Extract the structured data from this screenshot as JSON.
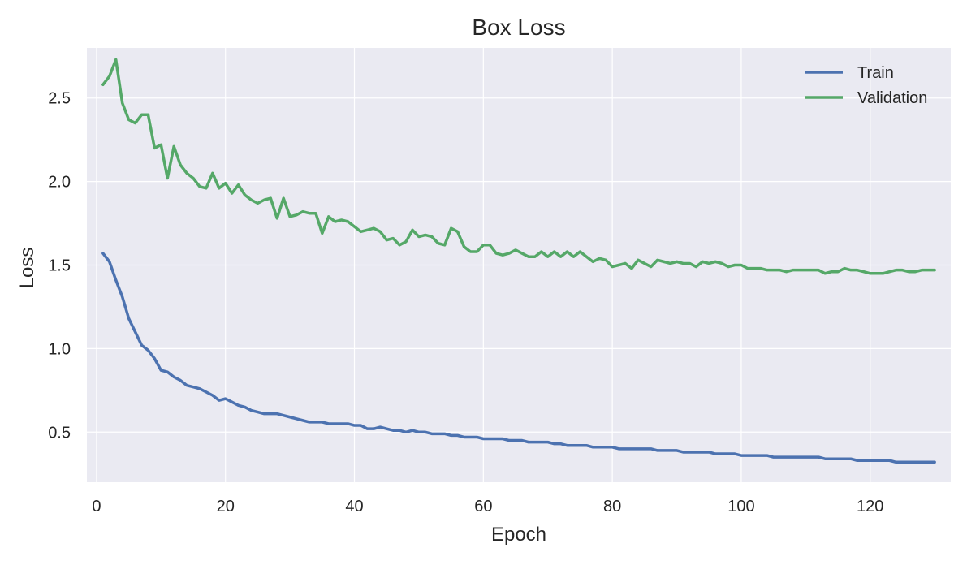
{
  "chart_data": {
    "type": "line",
    "title": "Box Loss",
    "xlabel": "Epoch",
    "ylabel": "Loss",
    "xlim": [
      -1.5,
      132.5
    ],
    "ylim": [
      0.2,
      2.8
    ],
    "xticks": [
      0,
      20,
      40,
      60,
      80,
      100,
      120
    ],
    "yticks": [
      0.5,
      1.0,
      1.5,
      2.0,
      2.5
    ],
    "xtick_labels": [
      "0",
      "20",
      "40",
      "60",
      "80",
      "100",
      "120"
    ],
    "ytick_labels": [
      "0.5",
      "1.0",
      "1.5",
      "2.0",
      "2.5"
    ],
    "grid": true,
    "legend_position": "top-right",
    "x": [
      1,
      2,
      3,
      4,
      5,
      6,
      7,
      8,
      9,
      10,
      11,
      12,
      13,
      14,
      15,
      16,
      17,
      18,
      19,
      20,
      21,
      22,
      23,
      24,
      25,
      26,
      27,
      28,
      29,
      30,
      31,
      32,
      33,
      34,
      35,
      36,
      37,
      38,
      39,
      40,
      41,
      42,
      43,
      44,
      45,
      46,
      47,
      48,
      49,
      50,
      51,
      52,
      53,
      54,
      55,
      56,
      57,
      58,
      59,
      60,
      61,
      62,
      63,
      64,
      65,
      66,
      67,
      68,
      69,
      70,
      71,
      72,
      73,
      74,
      75,
      76,
      77,
      78,
      79,
      80,
      81,
      82,
      83,
      84,
      85,
      86,
      87,
      88,
      89,
      90,
      91,
      92,
      93,
      94,
      95,
      96,
      97,
      98,
      99,
      100,
      101,
      102,
      103,
      104,
      105,
      106,
      107,
      108,
      109,
      110,
      111,
      112,
      113,
      114,
      115,
      116,
      117,
      118,
      119,
      120,
      121,
      122,
      123,
      124,
      125,
      126,
      127,
      128,
      129,
      130
    ],
    "series": [
      {
        "name": "Train",
        "color": "#4c72b0",
        "values": [
          1.57,
          1.52,
          1.41,
          1.31,
          1.18,
          1.1,
          1.02,
          0.99,
          0.94,
          0.87,
          0.86,
          0.83,
          0.81,
          0.78,
          0.77,
          0.76,
          0.74,
          0.72,
          0.69,
          0.7,
          0.68,
          0.66,
          0.65,
          0.63,
          0.62,
          0.61,
          0.61,
          0.61,
          0.6,
          0.59,
          0.58,
          0.57,
          0.56,
          0.56,
          0.56,
          0.55,
          0.55,
          0.55,
          0.55,
          0.54,
          0.54,
          0.52,
          0.52,
          0.53,
          0.52,
          0.51,
          0.51,
          0.5,
          0.51,
          0.5,
          0.5,
          0.49,
          0.49,
          0.49,
          0.48,
          0.48,
          0.47,
          0.47,
          0.47,
          0.46,
          0.46,
          0.46,
          0.46,
          0.45,
          0.45,
          0.45,
          0.44,
          0.44,
          0.44,
          0.44,
          0.43,
          0.43,
          0.42,
          0.42,
          0.42,
          0.42,
          0.41,
          0.41,
          0.41,
          0.41,
          0.4,
          0.4,
          0.4,
          0.4,
          0.4,
          0.4,
          0.39,
          0.39,
          0.39,
          0.39,
          0.38,
          0.38,
          0.38,
          0.38,
          0.38,
          0.37,
          0.37,
          0.37,
          0.37,
          0.36,
          0.36,
          0.36,
          0.36,
          0.36,
          0.35,
          0.35,
          0.35,
          0.35,
          0.35,
          0.35,
          0.35,
          0.35,
          0.34,
          0.34,
          0.34,
          0.34,
          0.34,
          0.33,
          0.33,
          0.33,
          0.33,
          0.33,
          0.33,
          0.32,
          0.32,
          0.32,
          0.32,
          0.32,
          0.32,
          0.32
        ]
      },
      {
        "name": "Validation",
        "color": "#55a868",
        "values": [
          2.58,
          2.63,
          2.73,
          2.47,
          2.37,
          2.35,
          2.4,
          2.4,
          2.2,
          2.22,
          2.02,
          2.21,
          2.1,
          2.05,
          2.02,
          1.97,
          1.96,
          2.05,
          1.96,
          1.99,
          1.93,
          1.98,
          1.92,
          1.89,
          1.87,
          1.89,
          1.9,
          1.78,
          1.9,
          1.79,
          1.8,
          1.82,
          1.81,
          1.81,
          1.69,
          1.79,
          1.76,
          1.77,
          1.76,
          1.73,
          1.7,
          1.71,
          1.72,
          1.7,
          1.65,
          1.66,
          1.62,
          1.64,
          1.71,
          1.67,
          1.68,
          1.67,
          1.63,
          1.62,
          1.72,
          1.7,
          1.61,
          1.58,
          1.58,
          1.62,
          1.62,
          1.57,
          1.56,
          1.57,
          1.59,
          1.57,
          1.55,
          1.55,
          1.58,
          1.55,
          1.58,
          1.55,
          1.58,
          1.55,
          1.58,
          1.55,
          1.52,
          1.54,
          1.53,
          1.49,
          1.5,
          1.51,
          1.48,
          1.53,
          1.51,
          1.49,
          1.53,
          1.52,
          1.51,
          1.52,
          1.51,
          1.51,
          1.49,
          1.52,
          1.51,
          1.52,
          1.51,
          1.49,
          1.5,
          1.5,
          1.48,
          1.48,
          1.48,
          1.47,
          1.47,
          1.47,
          1.46,
          1.47,
          1.47,
          1.47,
          1.47,
          1.47,
          1.45,
          1.46,
          1.46,
          1.48,
          1.47,
          1.47,
          1.46,
          1.45,
          1.45,
          1.45,
          1.46,
          1.47,
          1.47,
          1.46,
          1.46,
          1.47,
          1.47,
          1.47
        ]
      }
    ],
    "plot_background": "#eaeaf2",
    "grid_color": "#ffffff",
    "text_color": "#262626"
  }
}
